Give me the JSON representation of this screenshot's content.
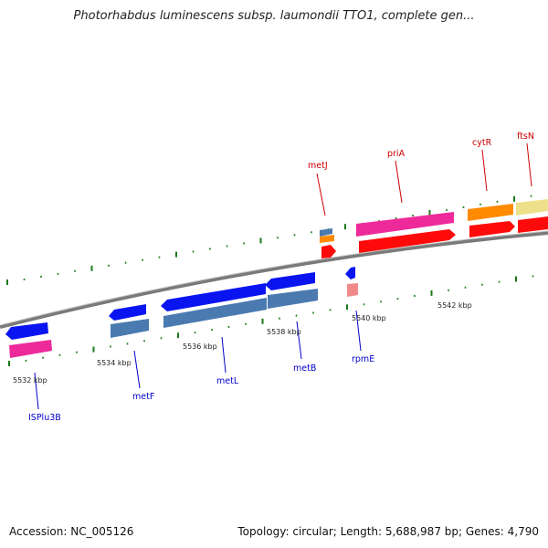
{
  "title": "Photorhabdus luminescens subsp. laumondii TTO1, complete gen...",
  "footer": {
    "accession": "Accession: NC_005126",
    "info": "Topology: circular; Length: 5,688,987 bp; Genes: 4,790"
  },
  "colors": {
    "backbone": "#8a8a8a",
    "tick": "#1a7a1a",
    "top_label": "#cc0000",
    "bottom_label": "#0000cc",
    "blue_gene": "#0a14f0",
    "steel_cds": "#4a7ab0",
    "pink_gene": "#ee2a9a",
    "red_cds": "#ff0a0a",
    "orange_gene": "#ff8a00",
    "yellow_gene": "#eee08a",
    "light_pink": "#f08a8a"
  },
  "ruler_labels": [
    "5532 kbp",
    "5534 kbp",
    "5536 kbp",
    "5538 kbp",
    "5540 kbp",
    "5542 kbp"
  ],
  "top_genes": [
    "metJ",
    "priA",
    "cytR",
    "ftsN"
  ],
  "bottom_genes": [
    "ISPlu3B",
    "metF",
    "metL",
    "metB",
    "rpmE"
  ]
}
